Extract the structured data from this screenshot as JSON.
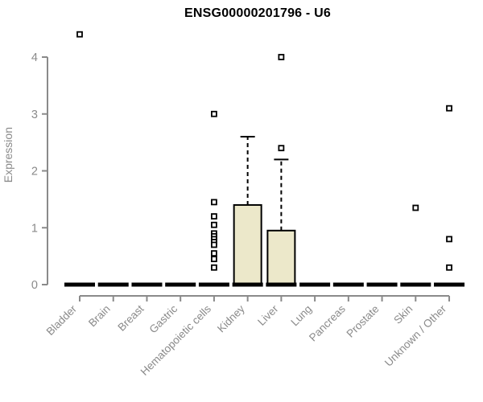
{
  "colors": {
    "background": "#ffffff",
    "title": "#000000",
    "axis": "#8a8a8a",
    "tick_label": "#8a8a8a",
    "box_fill": "#ece8ca",
    "box_border": "#000000",
    "whisker": "#000000",
    "median": "#000000",
    "outlier": "#000000"
  },
  "chart_data": {
    "type": "boxplot",
    "title": "ENSG00000201796 - U6",
    "ylabel": "Expression",
    "xlabel": "",
    "ylim": [
      0,
      4.45
    ],
    "yticks": [
      0,
      1,
      2,
      3,
      4
    ],
    "grid": false,
    "legend": null,
    "marker": "open-square",
    "whisker_style": "dashed",
    "categories": [
      "Bladder",
      "Brain",
      "Breast",
      "Gastric",
      "Hematopoietic cells",
      "Kidney",
      "Liver",
      "Lung",
      "Pancreas",
      "Prostate",
      "Skin",
      "Unknown / Other"
    ],
    "boxes": [
      {
        "category": "Bladder",
        "q1": 0,
        "median": 0,
        "q3": 0,
        "whisker_low": 0,
        "whisker_high": 0,
        "outliers": [
          4.4
        ]
      },
      {
        "category": "Brain",
        "q1": 0,
        "median": 0,
        "q3": 0,
        "whisker_low": 0,
        "whisker_high": 0,
        "outliers": []
      },
      {
        "category": "Breast",
        "q1": 0,
        "median": 0,
        "q3": 0,
        "whisker_low": 0,
        "whisker_high": 0,
        "outliers": []
      },
      {
        "category": "Gastric",
        "q1": 0,
        "median": 0,
        "q3": 0,
        "whisker_low": 0,
        "whisker_high": 0,
        "outliers": []
      },
      {
        "category": "Hematopoietic cells",
        "q1": 0,
        "median": 0,
        "q3": 0,
        "whisker_low": 0,
        "whisker_high": 0,
        "outliers": [
          3.0,
          1.45,
          1.2,
          1.05,
          0.9,
          0.85,
          0.8,
          0.75,
          0.7,
          0.55,
          0.45,
          0.3
        ]
      },
      {
        "category": "Kidney",
        "q1": 0,
        "median": 0,
        "q3": 1.4,
        "whisker_low": 0,
        "whisker_high": 2.6,
        "outliers": []
      },
      {
        "category": "Liver",
        "q1": 0,
        "median": 0,
        "q3": 0.95,
        "whisker_low": 0,
        "whisker_high": 2.2,
        "outliers": [
          2.4,
          4.0
        ]
      },
      {
        "category": "Lung",
        "q1": 0,
        "median": 0,
        "q3": 0,
        "whisker_low": 0,
        "whisker_high": 0,
        "outliers": []
      },
      {
        "category": "Pancreas",
        "q1": 0,
        "median": 0,
        "q3": 0,
        "whisker_low": 0,
        "whisker_high": 0,
        "outliers": []
      },
      {
        "category": "Prostate",
        "q1": 0,
        "median": 0,
        "q3": 0,
        "whisker_low": 0,
        "whisker_high": 0,
        "outliers": []
      },
      {
        "category": "Skin",
        "q1": 0,
        "median": 0,
        "q3": 0,
        "whisker_low": 0,
        "whisker_high": 0,
        "outliers": [
          1.35
        ]
      },
      {
        "category": "Unknown / Other",
        "q1": 0,
        "median": 0,
        "q3": 0,
        "whisker_low": 0,
        "whisker_high": 0,
        "outliers": [
          3.1,
          0.8,
          0.3
        ]
      }
    ]
  }
}
